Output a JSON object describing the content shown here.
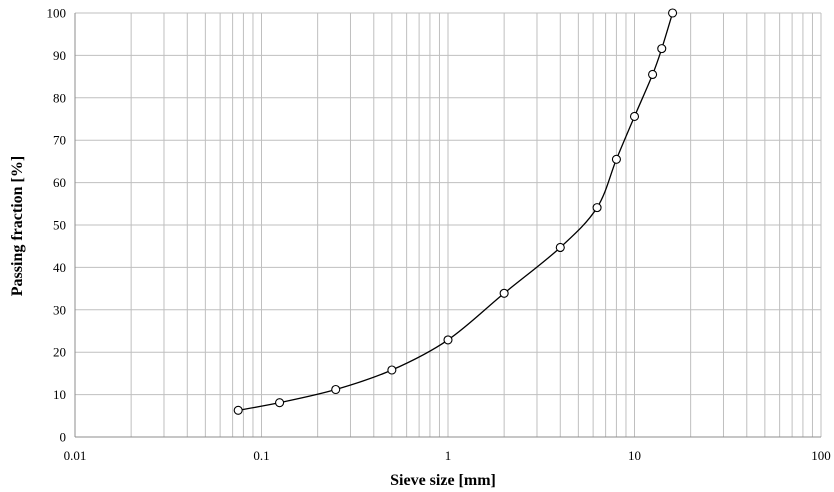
{
  "chart_data": {
    "type": "line",
    "title": "",
    "xlabel": "Sieve size [mm]",
    "ylabel": "Passing fraction [%]",
    "x_scale": "log",
    "xlim": [
      0.01,
      100
    ],
    "ylim": [
      0,
      100
    ],
    "x_ticks": [
      "0.01",
      "0.1",
      "1",
      "10",
      "100"
    ],
    "y_ticks": [
      "0",
      "10",
      "20",
      "30",
      "40",
      "50",
      "60",
      "70",
      "80",
      "90",
      "100"
    ],
    "grid": true,
    "legend": "none",
    "line_color": "#000000",
    "marker": "open-circle",
    "series": [
      {
        "x": [
          0.075,
          0.125,
          0.25,
          0.5,
          1,
          2,
          4,
          6.3,
          8,
          10,
          12.5,
          14,
          16
        ],
        "y": [
          6.3,
          8.1,
          11.2,
          15.8,
          22.9,
          33.9,
          44.7,
          54.1,
          65.5,
          75.6,
          85.5,
          91.6,
          100
        ]
      }
    ]
  }
}
